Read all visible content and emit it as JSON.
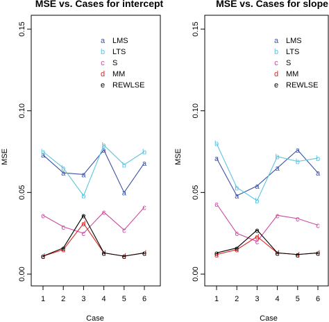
{
  "chart_data": [
    {
      "type": "line",
      "title": "MSE vs. Cases for intercept",
      "xlabel": "Case",
      "ylabel": "MSE",
      "x": [
        1,
        2,
        3,
        4,
        5,
        6
      ],
      "xticks": [
        "1",
        "2",
        "3",
        "4",
        "5",
        "6"
      ],
      "yticks": [
        "0.00",
        "0.05",
        "0.10",
        "0.15"
      ],
      "ylim": [
        0,
        0.15
      ],
      "legend_position": "top-right",
      "series": [
        {
          "name": "LMS",
          "symbol": "a",
          "color": "#3a52a8",
          "values": [
            0.073,
            0.062,
            0.061,
            0.076,
            0.05,
            0.068
          ]
        },
        {
          "name": "LTS",
          "symbol": "b",
          "color": "#5bc4e0",
          "values": [
            0.075,
            0.065,
            0.048,
            0.079,
            0.067,
            0.075
          ]
        },
        {
          "name": "S",
          "symbol": "c",
          "color": "#cc4aa0",
          "values": [
            0.036,
            0.029,
            0.025,
            0.038,
            0.027,
            0.041
          ]
        },
        {
          "name": "MM",
          "symbol": "d",
          "color": "#e02020",
          "values": [
            0.011,
            0.015,
            0.031,
            0.013,
            0.011,
            0.013
          ]
        },
        {
          "name": "REWLSE",
          "symbol": "e",
          "color": "#000000",
          "values": [
            0.011,
            0.016,
            0.036,
            0.013,
            0.011,
            0.013
          ]
        }
      ]
    },
    {
      "type": "line",
      "title": "MSE vs. Cases for slope",
      "xlabel": "Case",
      "ylabel": "MSE",
      "x": [
        1,
        2,
        3,
        4,
        5,
        6
      ],
      "xticks": [
        "1",
        "2",
        "3",
        "4",
        "5",
        "6"
      ],
      "yticks": [
        "0.00",
        "0.05",
        "0.10",
        "0.15"
      ],
      "ylim": [
        0,
        0.15
      ],
      "legend_position": "top-right",
      "series": [
        {
          "name": "LMS",
          "symbol": "a",
          "color": "#3a52a8",
          "values": [
            0.071,
            0.048,
            0.054,
            0.065,
            0.076,
            0.062
          ]
        },
        {
          "name": "LTS",
          "symbol": "b",
          "color": "#5bc4e0",
          "values": [
            0.08,
            0.053,
            0.045,
            0.072,
            0.069,
            0.071
          ]
        },
        {
          "name": "S",
          "symbol": "c",
          "color": "#cc4aa0",
          "values": [
            0.043,
            0.025,
            0.02,
            0.036,
            0.034,
            0.03
          ]
        },
        {
          "name": "MM",
          "symbol": "d",
          "color": "#e02020",
          "values": [
            0.012,
            0.015,
            0.023,
            0.013,
            0.012,
            0.013
          ]
        },
        {
          "name": "REWLSE",
          "symbol": "e",
          "color": "#000000",
          "values": [
            0.013,
            0.016,
            0.027,
            0.013,
            0.012,
            0.013
          ]
        }
      ]
    }
  ]
}
